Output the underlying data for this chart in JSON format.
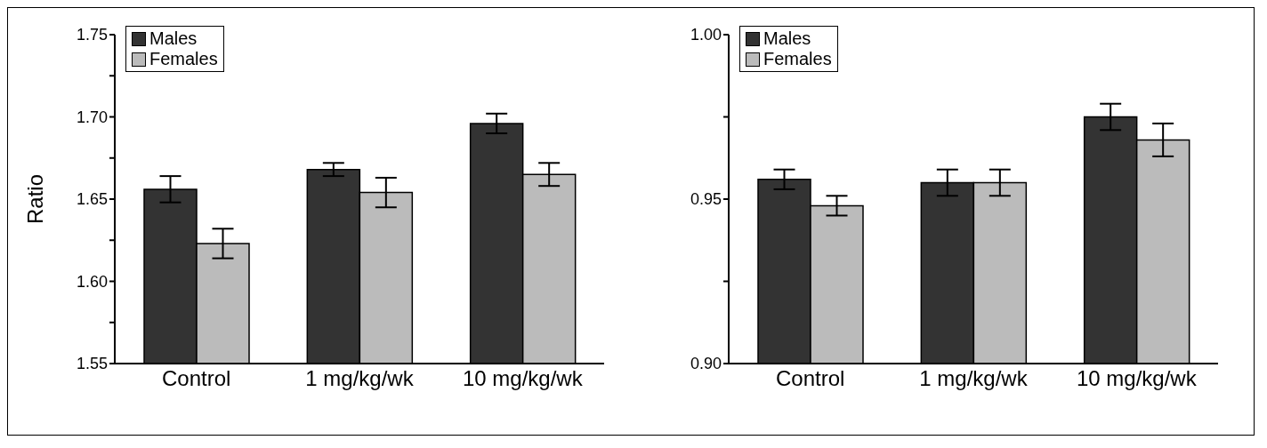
{
  "chart_data": [
    {
      "type": "bar",
      "ylabel": "Ratio",
      "categories": [
        "Control",
        "1 mg/kg/wk",
        "10 mg/kg/wk"
      ],
      "legend": "top left",
      "ylim": [
        1.55,
        1.75
      ],
      "yticks": [
        1.55,
        {
          "value": 1.575,
          "label": null
        },
        {
          "value": 1.6,
          "label": "1.60"
        },
        {
          "value": 1.625,
          "label": null
        },
        1.65,
        {
          "value": 1.675,
          "label": null
        },
        {
          "value": 1.7,
          "label": "1.70"
        },
        {
          "value": 1.725,
          "label": null
        },
        1.75
      ],
      "series": [
        {
          "name": "Males",
          "color": "#333333",
          "values": [
            1.656,
            1.668,
            1.696
          ],
          "errors": [
            0.008,
            0.004,
            0.006
          ]
        },
        {
          "name": "Females",
          "color": "#bbbbbb",
          "values": [
            1.623,
            1.654,
            1.665
          ],
          "errors": [
            0.009,
            0.009,
            0.007
          ]
        }
      ]
    },
    {
      "type": "bar",
      "categories": [
        "Control",
        "1 mg/kg/wk",
        "10 mg/kg/wk"
      ],
      "legend": "top left",
      "ylim": [
        0.9,
        1.0
      ],
      "yticks": [
        {
          "value": 0.9,
          "label": "0.90"
        },
        {
          "value": 0.925,
          "label": null
        },
        0.95,
        {
          "value": 0.975,
          "label": null
        },
        {
          "value": 1.0,
          "label": "1.00"
        }
      ],
      "series": [
        {
          "name": "Males",
          "color": "#333333",
          "values": [
            0.956,
            0.955,
            0.975
          ],
          "errors": [
            0.003,
            0.004,
            0.004
          ]
        },
        {
          "name": "Females",
          "color": "#bbbbbb",
          "values": [
            0.948,
            0.955,
            0.968
          ],
          "errors": [
            0.003,
            0.004,
            0.005
          ]
        }
      ]
    }
  ]
}
